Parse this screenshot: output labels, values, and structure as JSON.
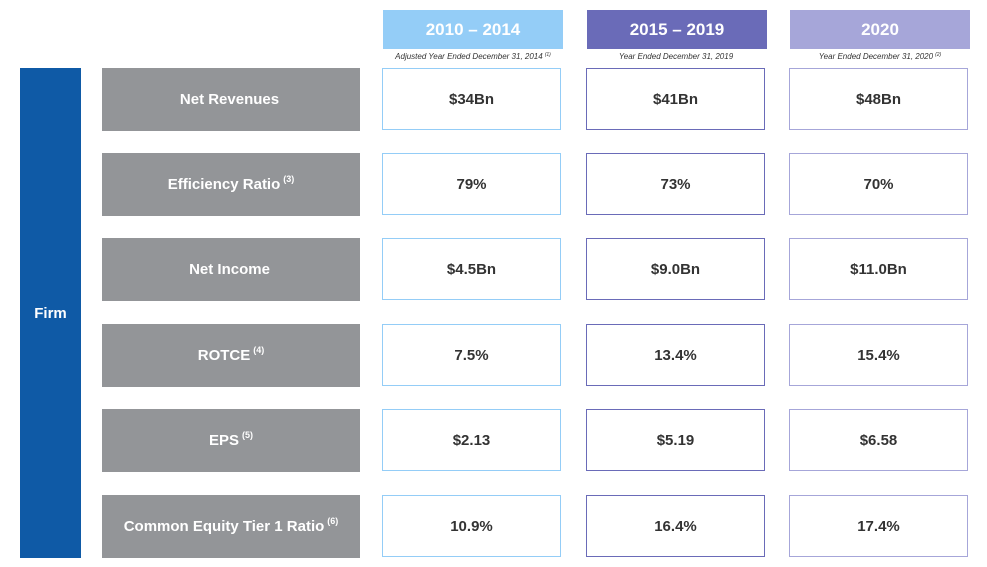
{
  "colors": {
    "firm_bar": "#0f5aa6",
    "label_gray": "#939598",
    "period1": "#94cdf7",
    "period2": "#6a6bb8",
    "period3": "#a6a6d9"
  },
  "periods": [
    {
      "heading": "2010 – 2014",
      "sub": "Adjusted Year Ended December 31, 2014",
      "sub_note": "(1)"
    },
    {
      "heading": "2015 – 2019",
      "sub": "Year Ended December 31, 2019",
      "sub_note": ""
    },
    {
      "heading": "2020",
      "sub": "Year Ended December 31, 2020",
      "sub_note": "(2)"
    }
  ],
  "segment": "Firm",
  "rows": [
    {
      "label": "Net Revenues",
      "note": "",
      "values": [
        "$34Bn",
        "$41Bn",
        "$48Bn"
      ]
    },
    {
      "label": "Efficiency Ratio",
      "note": "(3)",
      "values": [
        "79%",
        "73%",
        "70%"
      ]
    },
    {
      "label": "Net Income",
      "note": "",
      "values": [
        "$4.5Bn",
        "$9.0Bn",
        "$11.0Bn"
      ]
    },
    {
      "label": "ROTCE",
      "note": "(4)",
      "values": [
        "7.5%",
        "13.4%",
        "15.4%"
      ]
    },
    {
      "label": "EPS",
      "note": "(5)",
      "values": [
        "$2.13",
        "$5.19",
        "$6.58"
      ]
    },
    {
      "label": "Common Equity Tier 1 Ratio",
      "note": "(6)",
      "values": [
        "10.9%",
        "16.4%",
        "17.4%"
      ]
    }
  ]
}
